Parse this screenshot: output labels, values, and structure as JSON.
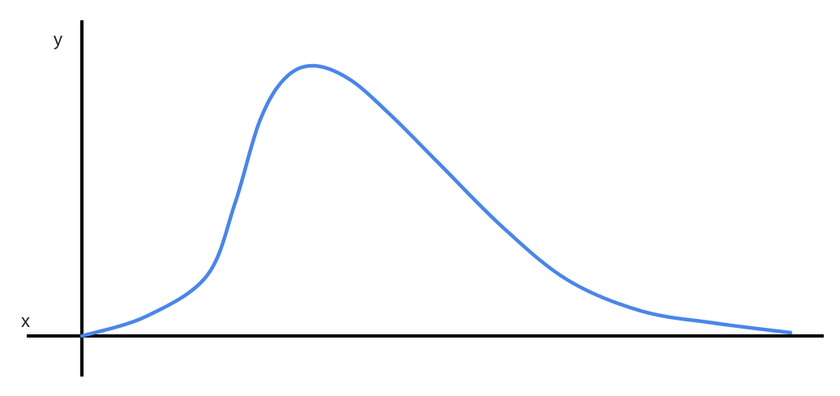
{
  "diagram": {
    "x_axis_label": "x",
    "y_axis_label": "y",
    "curve_color": "#4a86e8",
    "axis_color": "#000000"
  }
}
